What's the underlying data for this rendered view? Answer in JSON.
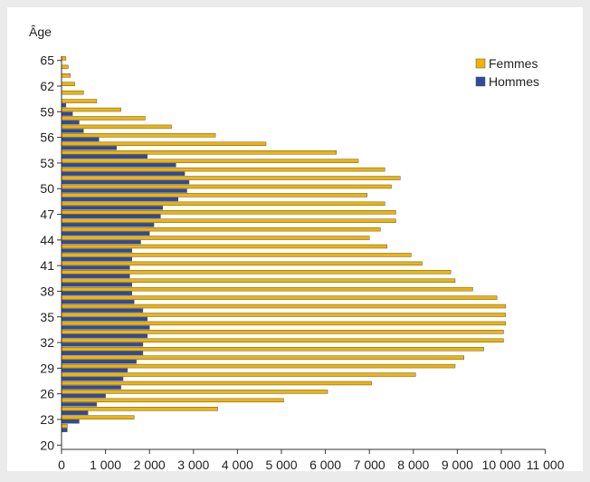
{
  "chart_data": {
    "type": "bar",
    "orientation": "horizontal",
    "ylabel": "Âge",
    "xlabel": "",
    "age_range": [
      20,
      65
    ],
    "xlim": [
      0,
      11000
    ],
    "x_ticks": [
      0,
      1000,
      2000,
      3000,
      4000,
      5000,
      6000,
      7000,
      8000,
      9000,
      10000,
      11000
    ],
    "x_tick_labels": [
      "0",
      "1 000",
      "2 000",
      "3 000",
      "4 000",
      "5 000",
      "6 000",
      "7 000",
      "8 000",
      "9 000",
      "10 000",
      "11 000"
    ],
    "y_tick_labels": [
      "20",
      "23",
      "26",
      "29",
      "32",
      "35",
      "38",
      "41",
      "44",
      "47",
      "50",
      "53",
      "56",
      "59",
      "62",
      "65"
    ],
    "legend_position": "top-right",
    "series": [
      {
        "name": "Femmes",
        "color": "#f0b400",
        "ages": [
          22,
          23,
          24,
          25,
          26,
          27,
          28,
          29,
          30,
          31,
          32,
          33,
          34,
          35,
          36,
          37,
          38,
          39,
          40,
          41,
          42,
          43,
          44,
          45,
          46,
          47,
          48,
          49,
          50,
          51,
          52,
          53,
          54,
          55,
          56,
          57,
          58,
          59,
          60,
          61,
          62,
          63,
          64,
          65
        ],
        "values": [
          130,
          1650,
          3550,
          5050,
          6050,
          7050,
          8050,
          8950,
          9150,
          9600,
          10050,
          10050,
          10100,
          10100,
          10100,
          9900,
          9350,
          8950,
          8850,
          8200,
          7950,
          7400,
          7000,
          7250,
          7600,
          7600,
          7350,
          6950,
          7500,
          7700,
          7350,
          6750,
          6250,
          4650,
          3500,
          2500,
          1900,
          1350,
          800,
          500,
          300,
          200,
          150,
          100
        ]
      },
      {
        "name": "Hommes",
        "color": "#2e4a9e",
        "ages": [
          22,
          23,
          24,
          25,
          26,
          27,
          28,
          29,
          30,
          31,
          32,
          33,
          34,
          35,
          36,
          37,
          38,
          39,
          40,
          41,
          42,
          43,
          44,
          45,
          46,
          47,
          48,
          49,
          50,
          51,
          52,
          53,
          54,
          55,
          56,
          57,
          58,
          59,
          60,
          61,
          62,
          63,
          64,
          65
        ],
        "values": [
          130,
          400,
          600,
          800,
          1000,
          1350,
          1400,
          1500,
          1700,
          1850,
          1850,
          1950,
          2000,
          1950,
          1850,
          1650,
          1600,
          1600,
          1550,
          1550,
          1600,
          1600,
          1800,
          2000,
          2100,
          2250,
          2300,
          2650,
          2850,
          2900,
          2800,
          2600,
          1950,
          1250,
          850,
          500,
          400,
          250,
          100,
          0,
          0,
          0,
          0,
          0
        ]
      }
    ]
  }
}
